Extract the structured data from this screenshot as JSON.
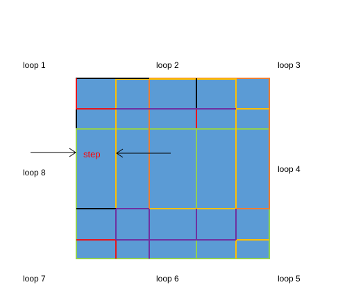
{
  "labels": {
    "loop1": "loop 1",
    "loop2": "loop 2",
    "loop3": "loop 3",
    "loop4": "loop 4",
    "loop5": "loop 5",
    "loop6": "loop 6",
    "loop7": "loop 7",
    "loop8": "loop 8",
    "step": "step"
  },
  "colors": {
    "fill": "#5b9bd5",
    "black": "#000000",
    "red": "#e8141b",
    "purple": "#7030a0",
    "green": "#92d050",
    "yellow": "#ffc000",
    "orange": "#ed7d31",
    "step_text": "#ff0000"
  }
}
